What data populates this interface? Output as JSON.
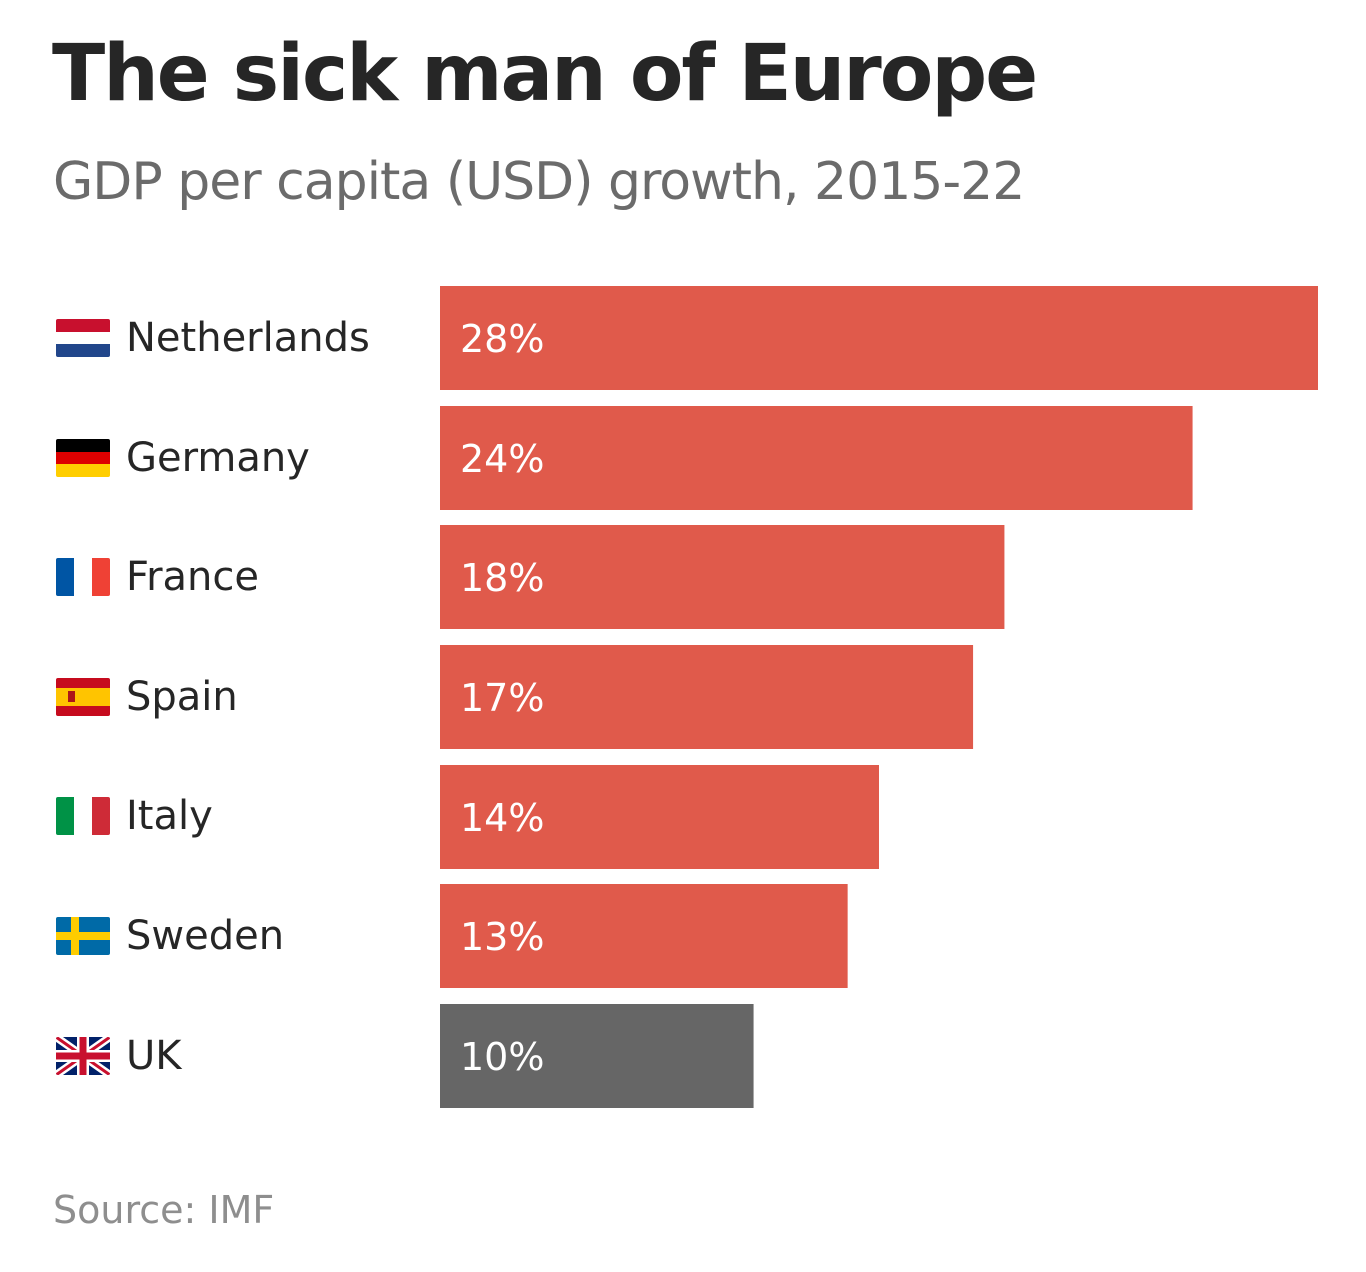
{
  "title": "The sick man of Europe",
  "subtitle": "GDP per capita (USD) growth, 2015-22",
  "source": "Source: IMF",
  "colors": {
    "bar": "#e05a4b",
    "highlight_bar": "#666666",
    "bar_label": "#ffffff"
  },
  "rows": [
    {
      "country": "Netherlands",
      "flag": "netherlands-flag-icon",
      "label": "28%"
    },
    {
      "country": "Germany",
      "flag": "germany-flag-icon",
      "label": "24%"
    },
    {
      "country": "France",
      "flag": "france-flag-icon",
      "label": "18%"
    },
    {
      "country": "Spain",
      "flag": "spain-flag-icon",
      "label": "17%"
    },
    {
      "country": "Italy",
      "flag": "italy-flag-icon",
      "label": "14%"
    },
    {
      "country": "Sweden",
      "flag": "sweden-flag-icon",
      "label": "13%"
    },
    {
      "country": "UK",
      "flag": "uk-flag-icon",
      "label": "10%"
    }
  ],
  "chart_data": {
    "type": "bar",
    "orientation": "horizontal",
    "title": "The sick man of Europe",
    "subtitle": "GDP per capita (USD) growth, 2015-22",
    "categories": [
      "Netherlands",
      "Germany",
      "France",
      "Spain",
      "Italy",
      "Sweden",
      "UK"
    ],
    "values": [
      28,
      24,
      18,
      17,
      14,
      13,
      10
    ],
    "unit": "%",
    "highlight": "UK",
    "xlim": [
      0,
      28
    ],
    "grid": false,
    "legend": "none"
  }
}
